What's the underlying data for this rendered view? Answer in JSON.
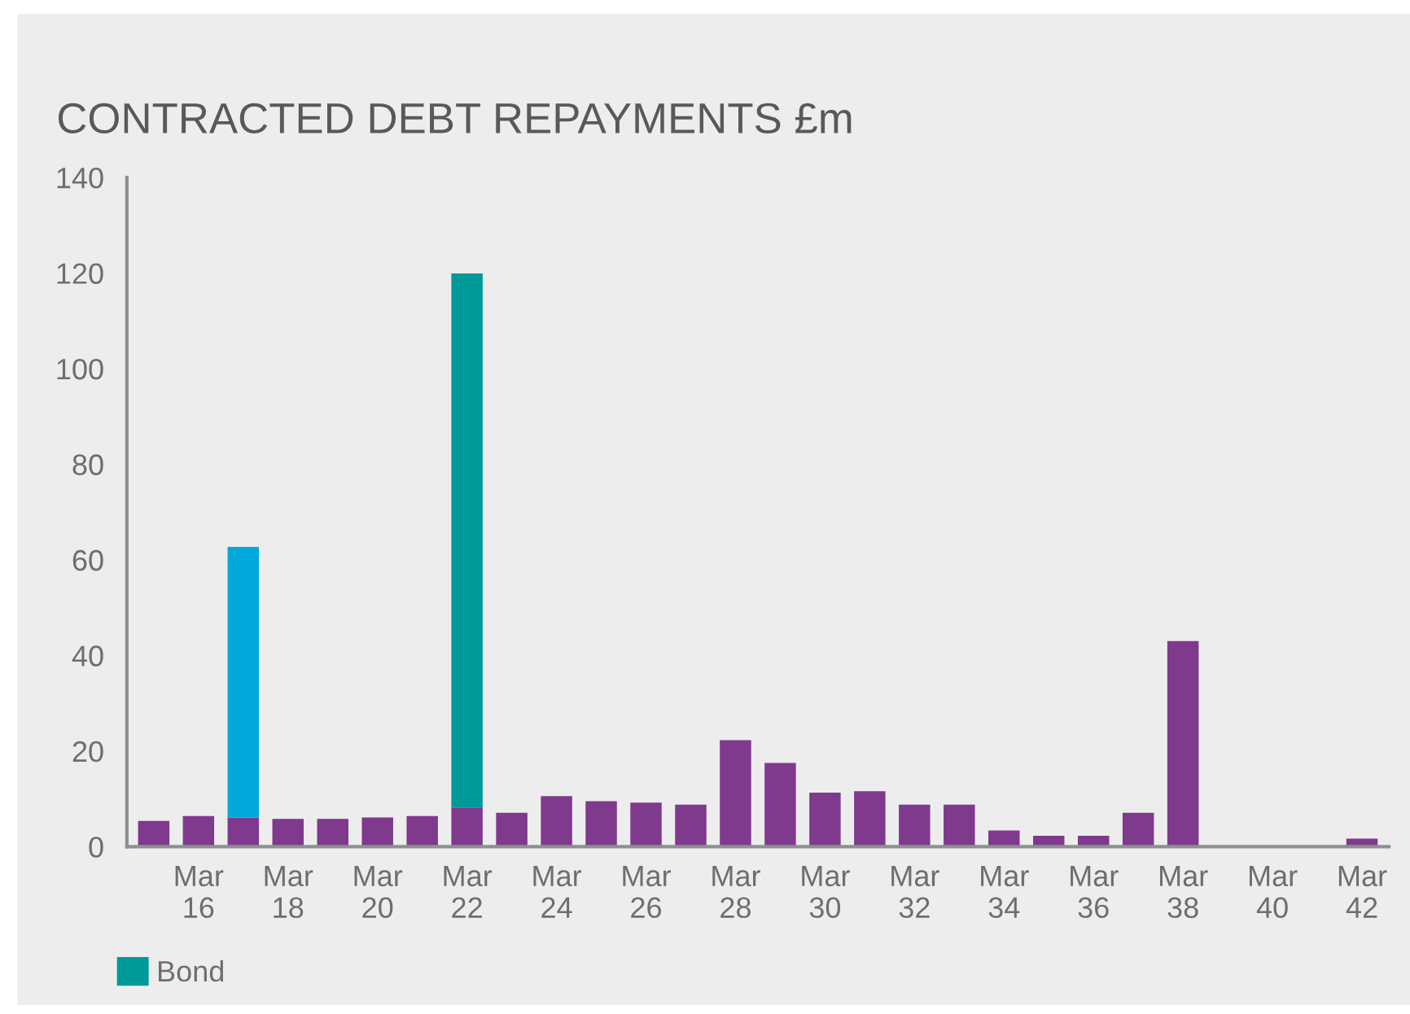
{
  "chart_data": {
    "type": "bar",
    "title": "CONTRACTED DEBT REPAYMENTS £m",
    "categories": [
      null,
      "Mar\n16",
      null,
      "Mar\n18",
      null,
      "Mar\n20",
      null,
      "Mar\n22",
      null,
      "Mar\n24",
      null,
      "Mar\n26",
      null,
      "Mar\n28",
      null,
      "Mar\n30",
      null,
      "Mar\n32",
      null,
      "Mar\n34",
      null,
      "Mar\n36",
      null,
      "Mar\n38",
      null,
      "Mar\n40",
      null,
      "Mar\n42"
    ],
    "stacked": true,
    "series": [
      {
        "color": "#7f398d",
        "values": [
          5.4,
          6.4,
          6.1,
          5.8,
          5.8,
          6.1,
          6.4,
          8.2,
          7.1,
          10.6,
          9.5,
          9.2,
          8.8,
          22.3,
          17.5,
          11.3,
          11.6,
          8.8,
          8.8,
          3.4,
          2.3,
          2.3,
          7.1,
          43,
          0,
          0,
          0,
          1.7
        ]
      },
      {
        "color": "#00a8dc",
        "values": [
          0,
          0,
          56.6,
          0,
          0,
          0,
          0,
          0,
          0,
          0,
          0,
          0,
          0,
          0,
          0,
          0,
          0,
          0,
          0,
          0,
          0,
          0,
          0,
          0,
          0,
          0,
          0,
          0
        ]
      },
      {
        "name": "Bond",
        "color": "#009a9a",
        "values": [
          0,
          0,
          0,
          0,
          0,
          0,
          0,
          111.7,
          0,
          0,
          0,
          0,
          0,
          0,
          0,
          0,
          0,
          0,
          0,
          0,
          0,
          0,
          0,
          0,
          0,
          0,
          0,
          0
        ]
      }
    ],
    "ylim": [
      0,
      140
    ],
    "yticks": [
      0,
      20,
      40,
      60,
      80,
      100,
      120,
      140
    ],
    "grid": false,
    "legend": "bottom left"
  }
}
